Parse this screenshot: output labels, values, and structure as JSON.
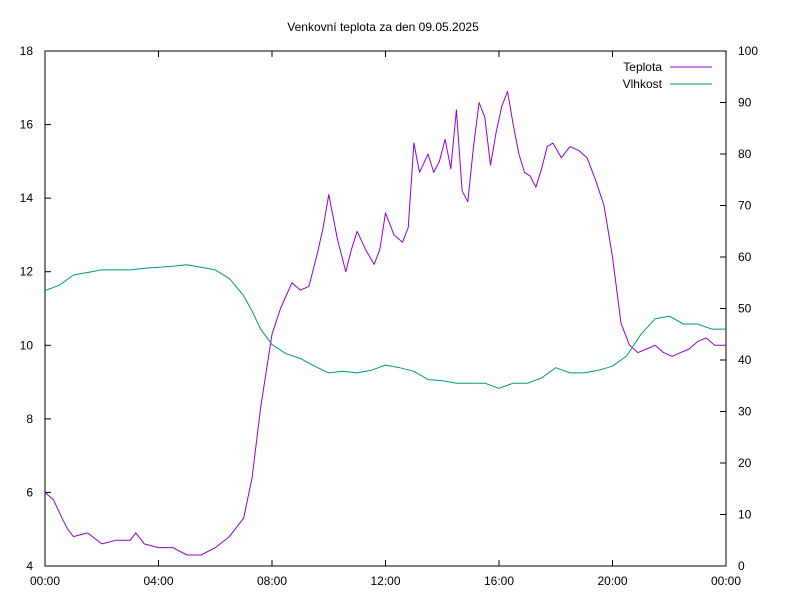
{
  "chart_data": {
    "type": "line",
    "title": "Venkovní teplota za den 09.05.2025",
    "xlabel": "",
    "ylabel": "",
    "y2label": "",
    "x_ticks": [
      "00:00",
      "04:00",
      "08:00",
      "12:00",
      "16:00",
      "20:00",
      "00:00"
    ],
    "xlim_hours": [
      0,
      24
    ],
    "ylim": [
      4,
      18
    ],
    "y_ticks": [
      "4",
      "6",
      "8",
      "10",
      "12",
      "14",
      "16",
      "18"
    ],
    "y2lim": [
      0,
      100
    ],
    "y2_ticks": [
      "0",
      "10",
      "20",
      "30",
      "40",
      "50",
      "60",
      "70",
      "80",
      "90",
      "100"
    ],
    "grid": false,
    "legend_position": "top-right",
    "series": [
      {
        "name": "Teplota",
        "axis": "left",
        "color": "#9400d3",
        "x": [
          0,
          0.3,
          0.6,
          0.8,
          1.0,
          1.5,
          2.0,
          2.5,
          3.0,
          3.2,
          3.5,
          4.0,
          4.5,
          5.0,
          5.5,
          6.0,
          6.5,
          7.0,
          7.3,
          7.6,
          8.0,
          8.3,
          8.7,
          9.0,
          9.3,
          9.6,
          9.8,
          10.0,
          10.3,
          10.6,
          10.8,
          11.0,
          11.3,
          11.6,
          11.8,
          12.0,
          12.3,
          12.6,
          12.8,
          13.0,
          13.2,
          13.5,
          13.7,
          13.9,
          14.1,
          14.3,
          14.5,
          14.7,
          14.9,
          15.1,
          15.3,
          15.5,
          15.7,
          15.9,
          16.1,
          16.3,
          16.5,
          16.7,
          16.9,
          17.1,
          17.3,
          17.5,
          17.7,
          17.9,
          18.2,
          18.5,
          18.8,
          19.1,
          19.4,
          19.7,
          20.0,
          20.3,
          20.6,
          20.9,
          21.2,
          21.5,
          21.8,
          22.1,
          22.4,
          22.7,
          23.0,
          23.3,
          23.6,
          23.9,
          24.0
        ],
        "values": [
          6.0,
          5.8,
          5.3,
          5.0,
          4.8,
          4.9,
          4.6,
          4.7,
          4.7,
          4.9,
          4.6,
          4.5,
          4.5,
          4.3,
          4.3,
          4.5,
          4.8,
          5.3,
          6.4,
          8.3,
          10.3,
          11.0,
          11.7,
          11.5,
          11.6,
          12.5,
          13.2,
          14.1,
          12.9,
          12.0,
          12.6,
          13.1,
          12.6,
          12.2,
          12.6,
          13.6,
          13.0,
          12.8,
          13.2,
          15.5,
          14.7,
          15.2,
          14.7,
          15.0,
          15.6,
          14.8,
          16.4,
          14.2,
          13.9,
          15.4,
          16.6,
          16.2,
          14.9,
          15.8,
          16.5,
          16.9,
          16.0,
          15.2,
          14.7,
          14.6,
          14.3,
          14.8,
          15.4,
          15.5,
          15.1,
          15.4,
          15.3,
          15.1,
          14.5,
          13.8,
          12.4,
          10.6,
          10.0,
          9.8,
          9.9,
          10.0,
          9.8,
          9.7,
          9.8,
          9.9,
          10.1,
          10.2,
          10.0,
          10.0,
          10.0
        ]
      },
      {
        "name": "Vlhkost",
        "axis": "right",
        "color": "#009e73",
        "x": [
          0,
          0.5,
          1.0,
          1.5,
          2.0,
          2.5,
          3.0,
          3.5,
          4.0,
          4.5,
          5.0,
          5.5,
          6.0,
          6.5,
          7.0,
          7.3,
          7.6,
          8.0,
          8.5,
          9.0,
          9.5,
          10.0,
          10.5,
          11.0,
          11.5,
          12.0,
          12.5,
          13.0,
          13.5,
          14.0,
          14.5,
          15.0,
          15.5,
          16.0,
          16.5,
          17.0,
          17.5,
          18.0,
          18.5,
          19.0,
          19.5,
          20.0,
          20.5,
          21.0,
          21.5,
          22.0,
          22.5,
          23.0,
          23.5,
          24.0
        ],
        "values": [
          53.5,
          54.5,
          56.5,
          57,
          57.5,
          57.5,
          57.5,
          57.8,
          58,
          58.2,
          58.5,
          58.0,
          57.5,
          55.8,
          52.5,
          49.5,
          46.0,
          43.0,
          41.2,
          40.3,
          38.8,
          37.5,
          37.8,
          37.5,
          38.0,
          39.0,
          38.5,
          37.8,
          36.2,
          36.0,
          35.5,
          35.5,
          35.5,
          34.5,
          35.5,
          35.5,
          36.5,
          38.5,
          37.5,
          37.5,
          38.0,
          38.8,
          40.8,
          45.0,
          48.0,
          48.5,
          47.0,
          47.0,
          46.0,
          46.0
        ]
      }
    ]
  }
}
